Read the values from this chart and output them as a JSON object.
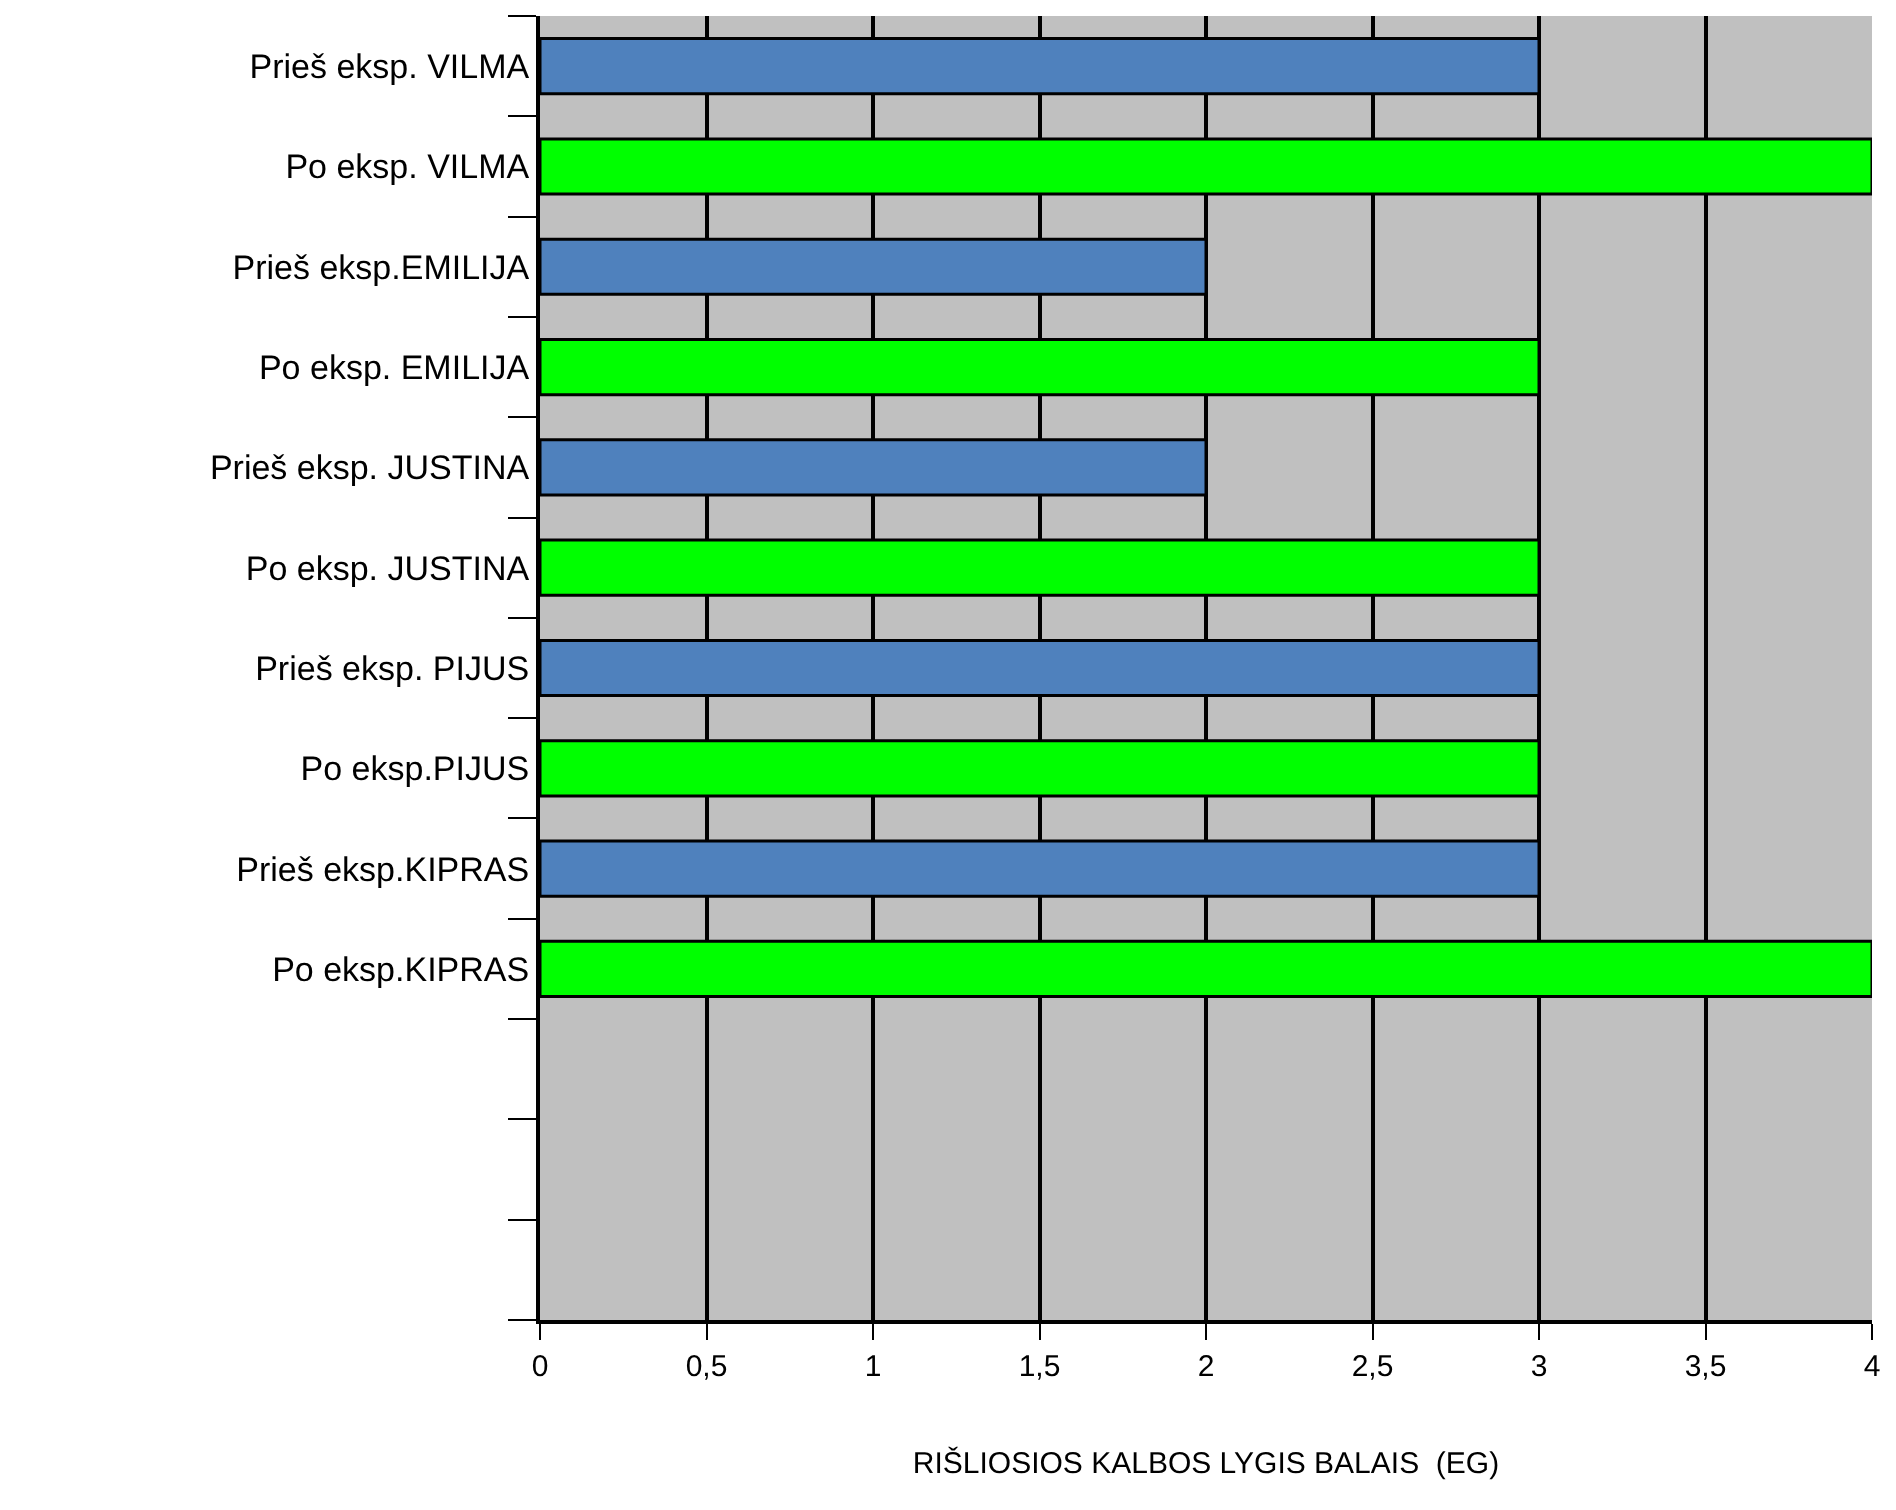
{
  "chart_data": {
    "type": "bar",
    "orientation": "horizontal",
    "xlabel": "RIŠLIOSIOS KALBOS LYGIS BALAIS  (EG)",
    "categories": [
      "Prieš eksp. VILMA",
      "Po eksp. VILMA",
      "Prieš eksp.EMILIJA",
      "Po eksp. EMILIJA",
      "Prieš eksp. JUSTINA",
      "Po eksp. JUSTINA",
      "Prieš eksp. PIJUS",
      "Po eksp.PIJUS",
      "Prieš eksp.KIPRAS",
      "Po eksp.KIPRAS",
      null,
      null,
      null
    ],
    "values": [
      3,
      4,
      2,
      3,
      2,
      3,
      3,
      3,
      3,
      4,
      null,
      null,
      null
    ],
    "colors": [
      "#4f81bd",
      "#00ff00",
      "#4f81bd",
      "#00ff00",
      "#4f81bd",
      "#00ff00",
      "#4f81bd",
      "#00ff00",
      "#4f81bd",
      "#00ff00",
      null,
      null,
      null
    ],
    "xlim": [
      0,
      4
    ],
    "xticks": [
      0,
      {
        "value": 0.5,
        "label": "0,5"
      },
      1,
      {
        "value": 1.5,
        "label": "1,5"
      },
      2,
      {
        "value": 2.5,
        "label": "2,5"
      },
      3,
      {
        "value": 3.5,
        "label": "3,5"
      },
      4
    ],
    "grid": "x"
  }
}
